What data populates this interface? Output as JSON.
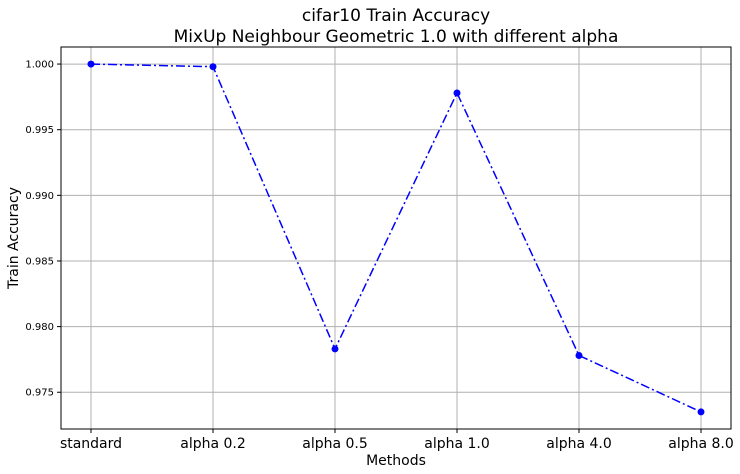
{
  "chart_data": {
    "type": "line",
    "title_line1": "cifar10 Train Accuracy",
    "title_line2": "MixUp Neighbour Geometric 1.0 with different alpha",
    "xlabel": "Methods",
    "ylabel": "Train Accuracy",
    "categories": [
      "standard",
      "alpha 0.2",
      "alpha 0.5",
      "alpha 1.0",
      "alpha 4.0",
      "alpha 8.0"
    ],
    "series": [
      {
        "values": [
          1.0,
          0.9998,
          0.9783,
          0.9978,
          0.9778,
          0.9735
        ],
        "color": "#0000ff",
        "line_style": "dash-dot",
        "marker": "circle"
      }
    ],
    "ylim": [
      0.9722,
      1.0013
    ],
    "yticks": [
      0.975,
      0.98,
      0.985,
      0.99,
      0.995,
      1.0
    ],
    "ytick_labels": [
      "0.975",
      "0.980",
      "0.985",
      "0.990",
      "0.995",
      "1.000"
    ],
    "grid": true,
    "legend": "none",
    "colors": {
      "grid": "#b0b0b0",
      "axes": "#000000",
      "background": "#ffffff"
    }
  }
}
